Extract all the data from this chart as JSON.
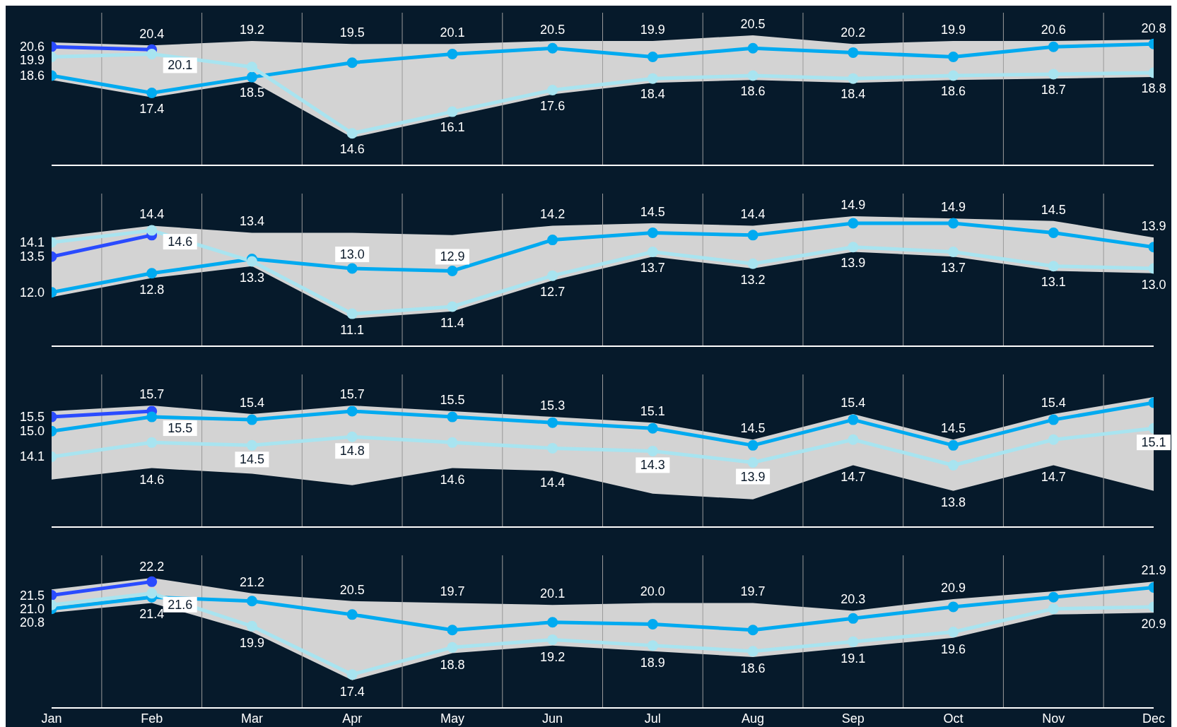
{
  "chart_data": [
    {
      "type": "line",
      "categories": [
        null,
        null,
        null,
        null,
        null,
        null,
        null,
        null,
        null,
        null,
        null,
        null
      ],
      "grid": "x",
      "marker": "circle",
      "line_style": "solid",
      "series": [
        {
          "color": "#2a4bff",
          "values": [
            20.6,
            20.4,
            null,
            null,
            null,
            null,
            null,
            null,
            null,
            null,
            null,
            null
          ],
          "value_labels": [
            "20.6",
            "20.4",
            null,
            null,
            null,
            null,
            null,
            null,
            null,
            null,
            null,
            null
          ]
        },
        {
          "color": "#00aaf0",
          "values": [
            18.6,
            17.4,
            18.5,
            19.5,
            20.1,
            20.5,
            19.9,
            20.5,
            20.2,
            19.9,
            20.6,
            20.8
          ],
          "value_labels": [
            "18.6",
            "17.4",
            "18.5",
            "19.5",
            "20.1",
            "20.5",
            "19.9",
            "20.5",
            "20.2",
            "19.9",
            "20.6",
            "20.8"
          ],
          "lower": [
            18.3,
            17.1,
            18.2,
            14.3,
            15.8,
            17.3,
            18.1,
            18.3,
            18.1,
            18.3,
            18.4,
            18.5
          ],
          "upper": [
            20.9,
            20.7,
            21.0,
            20.8,
            20.8,
            21.0,
            21.0,
            21.4,
            20.8,
            21.0,
            21.0,
            21.1
          ]
        },
        {
          "color": "#a8e4f0",
          "values": [
            19.9,
            20.1,
            19.2,
            14.6,
            16.1,
            17.6,
            18.4,
            18.6,
            18.4,
            18.6,
            18.7,
            18.8
          ],
          "value_labels": [
            "19.9",
            "20.1",
            "19.2",
            "14.6",
            "16.1",
            "17.6",
            "18.4",
            "18.6",
            "18.4",
            "18.6",
            "18.7",
            "18.8"
          ]
        }
      ]
    },
    {
      "type": "line",
      "categories": [
        null,
        null,
        null,
        null,
        null,
        null,
        null,
        null,
        null,
        null,
        null,
        null
      ],
      "grid": "x",
      "marker": "circle",
      "line_style": "solid",
      "series": [
        {
          "color": "#2a4bff",
          "values": [
            13.5,
            14.4,
            null,
            null,
            null,
            null,
            null,
            null,
            null,
            null,
            null,
            null
          ],
          "value_labels": [
            "13.5",
            "14.4",
            null,
            null,
            null,
            null,
            null,
            null,
            null,
            null,
            null,
            null
          ]
        },
        {
          "color": "#00aaf0",
          "values": [
            12.0,
            12.8,
            13.4,
            13.0,
            12.9,
            14.2,
            14.5,
            14.4,
            14.9,
            14.9,
            14.5,
            13.9
          ],
          "value_labels": [
            "12.0",
            "12.8",
            "13.4",
            "13.0",
            "12.9",
            "14.2",
            "14.5",
            "14.4",
            "14.9",
            "14.9",
            "14.5",
            "13.9"
          ],
          "lower": [
            11.8,
            12.6,
            13.1,
            10.9,
            11.2,
            12.5,
            13.5,
            13.0,
            13.7,
            13.5,
            12.9,
            12.8
          ],
          "upper": [
            14.3,
            14.8,
            14.5,
            14.5,
            14.4,
            14.8,
            14.9,
            14.8,
            15.2,
            15.1,
            15.0,
            14.3
          ]
        },
        {
          "color": "#a8e4f0",
          "values": [
            14.1,
            14.6,
            13.3,
            11.1,
            11.4,
            12.7,
            13.7,
            13.2,
            13.9,
            13.7,
            13.1,
            13.0
          ],
          "value_labels": [
            "14.1",
            "14.6",
            "13.3",
            "11.1",
            "11.4",
            "12.7",
            "13.7",
            "13.2",
            "13.9",
            "13.7",
            "13.1",
            "13.0"
          ]
        }
      ]
    },
    {
      "type": "line",
      "categories": [
        null,
        null,
        null,
        null,
        null,
        null,
        null,
        null,
        null,
        null,
        null,
        null
      ],
      "grid": "x",
      "marker": "circle",
      "line_style": "solid",
      "series": [
        {
          "color": "#2a4bff",
          "values": [
            15.5,
            15.7,
            null,
            null,
            null,
            null,
            null,
            null,
            null,
            null,
            null,
            null
          ],
          "value_labels": [
            "15.5",
            "15.7",
            null,
            null,
            null,
            null,
            null,
            null,
            null,
            null,
            null,
            null
          ]
        },
        {
          "color": "#00aaf0",
          "values": [
            15.0,
            15.5,
            15.4,
            15.7,
            15.5,
            15.3,
            15.1,
            14.5,
            15.4,
            14.5,
            15.4,
            16.0
          ],
          "value_labels": [
            "15.0",
            "15.5",
            "15.4",
            "15.7",
            "15.5",
            "15.3",
            "15.1",
            "14.5",
            "15.4",
            "14.5",
            "15.4",
            null
          ],
          "lower": [
            13.3,
            13.7,
            13.5,
            13.1,
            13.7,
            13.6,
            12.8,
            12.6,
            13.8,
            12.9,
            13.8,
            12.9
          ],
          "upper": [
            15.7,
            15.9,
            15.6,
            15.9,
            15.7,
            15.5,
            15.3,
            14.7,
            15.6,
            14.7,
            15.6,
            16.2
          ]
        },
        {
          "color": "#a8e4f0",
          "values": [
            14.1,
            14.6,
            14.5,
            14.8,
            14.6,
            14.4,
            14.3,
            13.9,
            14.7,
            13.8,
            14.7,
            15.1
          ],
          "value_labels": [
            "14.1",
            "14.6",
            "14.5",
            "14.8",
            "14.6",
            "14.4",
            "14.3",
            "13.9",
            "14.7",
            "13.8",
            "14.7",
            "15.1"
          ]
        }
      ]
    },
    {
      "type": "line",
      "categories": [
        "Jan",
        "Feb",
        "Mar",
        "Apr",
        "May",
        "Jun",
        "Jul",
        "Aug",
        "Sep",
        "Oct",
        "Nov",
        "Dec"
      ],
      "tick_labels": "x",
      "grid": "x",
      "marker": "circle",
      "line_style": "solid",
      "series": [
        {
          "color": "#2a4bff",
          "values": [
            21.5,
            22.2,
            null,
            null,
            null,
            null,
            null,
            null,
            null,
            null,
            null,
            null
          ],
          "value_labels": [
            "21.5",
            "22.2",
            null,
            null,
            null,
            null,
            null,
            null,
            null,
            null,
            null,
            null
          ]
        },
        {
          "color": "#00aaf0",
          "values": [
            20.8,
            21.4,
            21.2,
            20.5,
            19.7,
            20.1,
            20.0,
            19.7,
            20.3,
            20.9,
            21.4,
            21.9
          ],
          "value_labels": [
            "20.8",
            "21.4",
            "21.2",
            "20.5",
            "19.7",
            "20.1",
            "20.0",
            "19.7",
            "20.3",
            "20.9",
            null,
            "21.9"
          ],
          "lower": [
            20.6,
            21.1,
            19.6,
            17.1,
            18.5,
            18.9,
            18.6,
            18.3,
            18.8,
            19.3,
            20.5,
            20.6
          ],
          "upper": [
            21.8,
            22.4,
            21.6,
            21.2,
            21.1,
            21.0,
            21.1,
            21.1,
            20.7,
            21.3,
            21.7,
            22.2
          ]
        },
        {
          "color": "#a8e4f0",
          "values": [
            21.0,
            21.6,
            19.9,
            17.4,
            18.8,
            19.2,
            18.9,
            18.6,
            19.1,
            19.6,
            20.8,
            20.9
          ],
          "value_labels": [
            "21.0",
            "21.6",
            "19.9",
            "17.4",
            "18.8",
            "19.2",
            "18.9",
            "18.6",
            "19.1",
            "19.6",
            null,
            "20.9"
          ]
        }
      ]
    }
  ]
}
